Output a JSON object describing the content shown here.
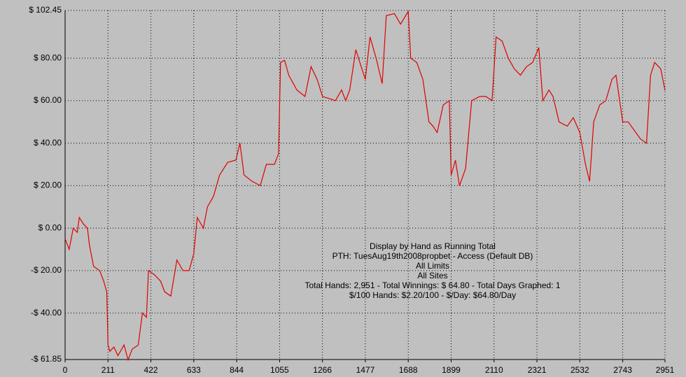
{
  "chart_data": {
    "type": "line",
    "color": "#e00000",
    "grid": true,
    "annotations": [
      "Display by Hand as Running Total",
      "PTH: TuesAug19th2008propbet - Access (Default DB)",
      "All Limits",
      "All Sites",
      "Total Hands: 2,951 - Total Winnings: $ 64.80 - Total Days Graphed: 1",
      "$/100 Hands: $2.20/100 - $/Day: $64.80/Day"
    ],
    "x": [
      0,
      20,
      40,
      60,
      70,
      90,
      110,
      120,
      140,
      170,
      190,
      205,
      211,
      220,
      240,
      260,
      290,
      310,
      330,
      360,
      380,
      400,
      410,
      440,
      470,
      490,
      520,
      550,
      580,
      610,
      633,
      650,
      680,
      700,
      730,
      760,
      800,
      840,
      860,
      880,
      920,
      960,
      990,
      1030,
      1050,
      1060,
      1080,
      1100,
      1140,
      1180,
      1210,
      1240,
      1266,
      1300,
      1330,
      1360,
      1380,
      1400,
      1430,
      1460,
      1477,
      1500,
      1530,
      1560,
      1580,
      1620,
      1650,
      1688,
      1700,
      1730,
      1760,
      1790,
      1810,
      1830,
      1860,
      1890,
      1899,
      1920,
      1940,
      1970,
      2000,
      2040,
      2070,
      2100,
      2120,
      2150,
      2180,
      2210,
      2240,
      2270,
      2300,
      2330,
      2350,
      2380,
      2400,
      2430,
      2470,
      2500,
      2532,
      2560,
      2580,
      2600,
      2630,
      2660,
      2690,
      2710,
      2743,
      2770,
      2800,
      2830,
      2860,
      2880,
      2900,
      2930,
      2951
    ],
    "values": [
      -5,
      -10,
      0,
      -2,
      5,
      2,
      0,
      -8,
      -18,
      -20,
      -25,
      -30,
      -55,
      -58,
      -56,
      -60,
      -55,
      -62,
      -57,
      -55,
      -40,
      -42,
      -20,
      -22,
      -25,
      -30,
      -32,
      -15,
      -20,
      -20,
      -12,
      5,
      0,
      10,
      15,
      25,
      31,
      32,
      40,
      25,
      22,
      20,
      30,
      30,
      35,
      78,
      79,
      72,
      65,
      62,
      76,
      70,
      62,
      61,
      60,
      65,
      60,
      65,
      84,
      75,
      70,
      90,
      80,
      68,
      100,
      101,
      96,
      102,
      80,
      78,
      70,
      50,
      48,
      45,
      58,
      60,
      25,
      32,
      20,
      28,
      60,
      62,
      62,
      60,
      90,
      88,
      80,
      75,
      72,
      76,
      78,
      85,
      60,
      65,
      62,
      50,
      48,
      52,
      45,
      30,
      22,
      50,
      58,
      60,
      70,
      72,
      50,
      50,
      46,
      42,
      40,
      72,
      78,
      75,
      64.8
    ],
    "xlim": [
      0,
      2951
    ],
    "xticks": [
      0,
      211,
      422,
      633,
      844,
      1055,
      1266,
      1477,
      1688,
      1899,
      2110,
      2321,
      2532,
      2743,
      2951
    ],
    "ylim": [
      -61.85,
      102.45
    ],
    "yticks": [
      {
        "value": -61.85,
        "label": "-$ 61.85"
      },
      {
        "value": -40,
        "label": "-$ 40.00"
      },
      {
        "value": -20,
        "label": "-$ 20.00"
      },
      {
        "value": 0,
        "label": "$ 0.00"
      },
      {
        "value": 20,
        "label": "$ 20.00"
      },
      {
        "value": 40,
        "label": "$ 40.00"
      },
      {
        "value": 60,
        "label": "$ 60.00"
      },
      {
        "value": 80,
        "label": "$ 80.00"
      },
      {
        "value": 102.45,
        "label": "$ 102.45"
      }
    ]
  }
}
